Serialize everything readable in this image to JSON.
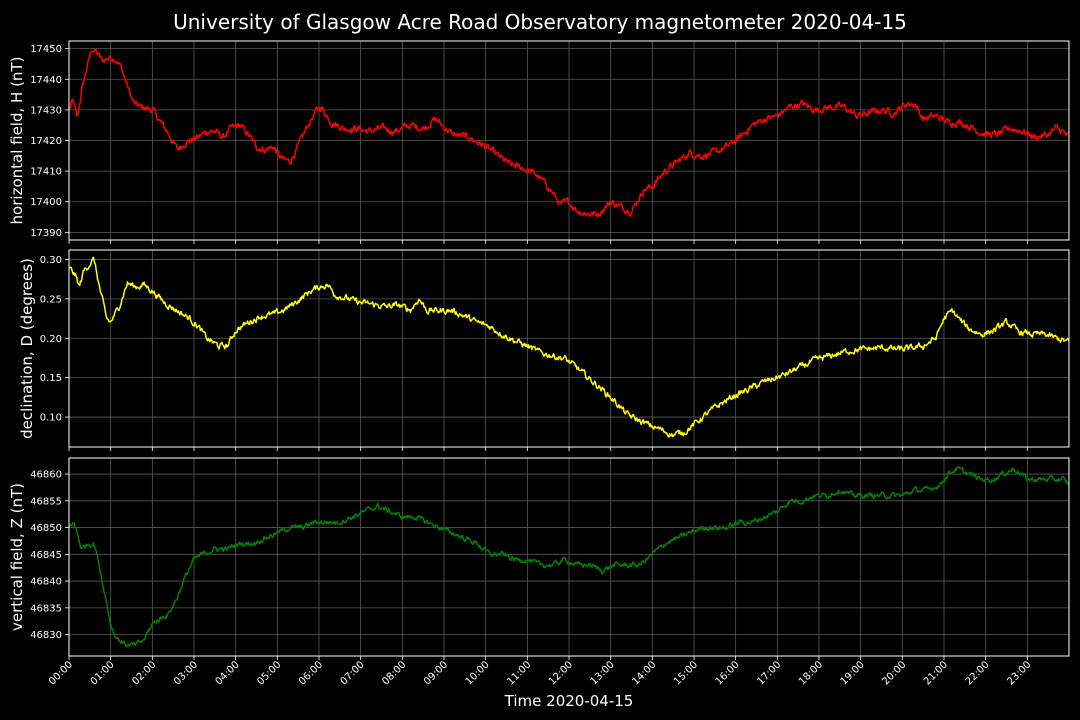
{
  "title": "University of Glasgow Acre Road Observatory magnetometer 2020-04-15",
  "chart_data": {
    "type": "line",
    "title": "University of Glasgow Acre Road Observatory magnetometer 2020-04-15",
    "xlabel": "Time 2020-04-15",
    "xlim": [
      0,
      24
    ],
    "x_tick_labels": [
      "00:00",
      "01:00",
      "02:00",
      "03:00",
      "04:00",
      "05:00",
      "06:00",
      "07:00",
      "08:00",
      "09:00",
      "10:00",
      "11:00",
      "12:00",
      "13:00",
      "14:00",
      "15:00",
      "16:00",
      "17:00",
      "18:00",
      "19:00",
      "20:00",
      "21:00",
      "22:00",
      "23:00"
    ],
    "grid": true,
    "panels": [
      {
        "ylabel": "horizontal field, H (nT)",
        "color": "#ff0000",
        "ylim": [
          17387.5,
          17452.5
        ],
        "yticks": [
          17390,
          17400,
          17410,
          17420,
          17430,
          17440,
          17450
        ],
        "noise": 1.2,
        "series": [
          {
            "x": [
              0,
              0.1,
              0.2,
              0.3,
              0.4,
              0.55,
              0.65,
              0.8,
              0.95,
              1.1,
              1.25,
              1.4,
              1.55,
              1.7,
              2.0,
              2.2,
              2.4,
              2.6,
              2.75,
              2.9,
              3.1,
              3.3,
              3.5,
              3.7,
              3.9,
              4.1,
              4.3,
              4.5,
              4.7,
              4.9,
              5.1,
              5.3,
              5.5,
              5.7,
              5.9,
              6.05,
              6.3,
              6.6,
              6.9,
              7.2,
              7.5,
              7.8,
              8.2,
              8.5,
              8.8,
              9.2,
              9.6,
              10.0,
              10.3,
              10.6,
              10.9,
              11.2,
              11.5,
              11.8,
              12.0,
              12.2,
              12.5,
              12.7,
              13.0,
              13.3,
              13.5,
              13.8,
              14.0,
              14.3,
              14.6,
              14.9,
              15.2,
              15.5,
              15.8,
              16.1,
              16.4,
              16.7,
              17.0,
              17.3,
              17.6,
              17.9,
              18.3,
              18.6,
              18.9,
              19.2,
              19.5,
              19.8,
              20.1,
              20.3,
              20.5,
              20.8,
              21.1,
              21.4,
              21.7,
              22.0,
              22.3,
              22.6,
              22.9,
              23.2,
              23.5,
              23.7,
              23.85,
              24
            ],
            "y": [
              17430,
              17433,
              17427,
              17436,
              17442,
              17450,
              17449,
              17446,
              17447,
              17447,
              17444,
              17438,
              17432,
              17431,
              17430,
              17426,
              17422,
              17417,
              17419,
              17420,
              17421,
              17423,
              17423,
              17421,
              17424,
              17425,
              17422,
              17418,
              17417,
              17418,
              17414,
              17413,
              17418,
              17424,
              17429,
              17431,
              17426,
              17424,
              17424,
              17423,
              17424,
              17423,
              17425,
              17424,
              17427,
              17422,
              17421,
              17418,
              17415,
              17412,
              17411,
              17409,
              17405,
              17399,
              17400,
              17397,
              17396,
              17396,
              17400,
              17398,
              17397,
              17404,
              17405,
              17410,
              17413,
              17416,
              17415,
              17416,
              17418,
              17421,
              17425,
              17427,
              17428,
              17431,
              17432,
              17430,
              17431,
              17431,
              17428,
              17429,
              17430,
              17429,
              17432,
              17432,
              17427,
              17428,
              17426,
              17426,
              17424,
              17422,
              17422,
              17424,
              17423,
              17421,
              17422,
              17424,
              17423,
              17421
            ]
          }
        ]
      },
      {
        "ylabel": "declination, D (degrees)",
        "color": "#ffff00",
        "ylim": [
          0.062,
          0.312
        ],
        "yticks": [
          0.1,
          0.15,
          0.2,
          0.25,
          0.3
        ],
        "noise": 0.004,
        "series": [
          {
            "x": [
              0,
              0.15,
              0.25,
              0.35,
              0.5,
              0.6,
              0.75,
              0.9,
              1.0,
              1.2,
              1.4,
              1.6,
              1.8,
              2.0,
              2.3,
              2.6,
              2.9,
              3.1,
              3.3,
              3.6,
              3.8,
              4.0,
              4.3,
              4.6,
              4.9,
              5.2,
              5.5,
              5.8,
              6.0,
              6.2,
              6.4,
              6.7,
              7.0,
              7.3,
              7.6,
              7.9,
              8.2,
              8.4,
              8.6,
              8.9,
              9.2,
              9.5,
              9.8,
              10.1,
              10.4,
              10.7,
              11.0,
              11.3,
              11.6,
              11.9,
              12.2,
              12.5,
              12.8,
              13.1,
              13.4,
              13.7,
              14.0,
              14.3,
              14.5,
              14.8,
              15.1,
              15.5,
              15.9,
              16.3,
              16.7,
              17.1,
              17.5,
              17.9,
              18.3,
              18.7,
              19.1,
              19.5,
              19.9,
              20.2,
              20.5,
              20.8,
              21.0,
              21.2,
              21.4,
              21.6,
              21.9,
              22.2,
              22.5,
              22.8,
              23.1,
              23.4,
              23.7,
              24
            ],
            "y": [
              0.29,
              0.28,
              0.265,
              0.285,
              0.295,
              0.3,
              0.26,
              0.225,
              0.22,
              0.24,
              0.27,
              0.265,
              0.268,
              0.26,
              0.245,
              0.235,
              0.225,
              0.215,
              0.2,
              0.19,
              0.19,
              0.21,
              0.22,
              0.228,
              0.23,
              0.237,
              0.248,
              0.26,
              0.265,
              0.268,
              0.255,
              0.25,
              0.245,
              0.243,
              0.24,
              0.242,
              0.236,
              0.25,
              0.235,
              0.235,
              0.235,
              0.228,
              0.22,
              0.215,
              0.205,
              0.197,
              0.19,
              0.182,
              0.178,
              0.174,
              0.162,
              0.148,
              0.135,
              0.12,
              0.103,
              0.095,
              0.088,
              0.082,
              0.077,
              0.082,
              0.095,
              0.112,
              0.125,
              0.135,
              0.145,
              0.152,
              0.162,
              0.172,
              0.178,
              0.184,
              0.186,
              0.188,
              0.186,
              0.187,
              0.19,
              0.2,
              0.225,
              0.235,
              0.222,
              0.212,
              0.205,
              0.21,
              0.22,
              0.208,
              0.205,
              0.205,
              0.2,
              0.195
            ]
          }
        ]
      },
      {
        "ylabel": "vertical field, Z (nT)",
        "color": "#008000",
        "ylim": [
          46826,
          46863
        ],
        "yticks": [
          46830,
          46835,
          46840,
          46845,
          46850,
          46855,
          46860
        ],
        "noise": 0.5,
        "series": [
          {
            "x": [
              0,
              0.1,
              0.2,
              0.3,
              0.45,
              0.6,
              0.7,
              0.8,
              0.9,
              1.0,
              1.1,
              1.2,
              1.4,
              1.6,
              1.8,
              2.0,
              2.2,
              2.4,
              2.6,
              2.8,
              3.0,
              3.2,
              3.5,
              3.8,
              4.1,
              4.4,
              4.7,
              5.0,
              5.3,
              5.6,
              5.9,
              6.2,
              6.5,
              6.8,
              7.1,
              7.4,
              7.7,
              8.0,
              8.3,
              8.6,
              8.9,
              9.2,
              9.5,
              9.8,
              10.1,
              10.4,
              10.7,
              11.0,
              11.3,
              11.6,
              11.9,
              12.2,
              12.5,
              12.8,
              13.1,
              13.4,
              13.7,
              14.0,
              14.3,
              14.6,
              14.9,
              15.2,
              15.5,
              15.8,
              16.1,
              16.4,
              16.7,
              17.0,
              17.3,
              17.6,
              17.9,
              18.2,
              18.5,
              18.8,
              19.1,
              19.4,
              19.7,
              20.0,
              20.3,
              20.6,
              20.9,
              21.1,
              21.3,
              21.6,
              21.9,
              22.2,
              22.4,
              22.7,
              23.0,
              23.3,
              23.6,
              23.85,
              24
            ],
            "y": [
              46850,
              46851,
              46849,
              46846,
              46847,
              46847,
              46844,
              46840,
              46836,
              46832,
              46830,
              46829,
              46828,
              46828,
              46829,
              46832,
              46833,
              46834,
              46837,
              46841,
              46844,
              46845,
              46846,
              46846,
              46847,
              46847,
              46848,
              46849,
              46850,
              46850,
              46851,
              46851,
              46851,
              46852,
              46853,
              46854,
              46853,
              46852,
              46852,
              46851,
              46850,
              46849,
              46848,
              46847,
              46845,
              46845,
              46844,
              46844,
              46843,
              46843,
              46844,
              46843,
              46843,
              46842,
              46843,
              46843,
              46843,
              46845,
              46847,
              46848,
              46849,
              46850,
              46850,
              46850,
              46851,
              46851,
              46852,
              46853,
              46855,
              46855,
              46856,
              46856,
              46857,
              46856,
              46856,
              46856,
              46856,
              46856,
              46857,
              46857,
              46858,
              46860,
              46861,
              46860,
              46859,
              46859,
              46860,
              46861,
              46859,
              46859,
              46859,
              46859,
              46858
            ]
          }
        ]
      }
    ]
  }
}
